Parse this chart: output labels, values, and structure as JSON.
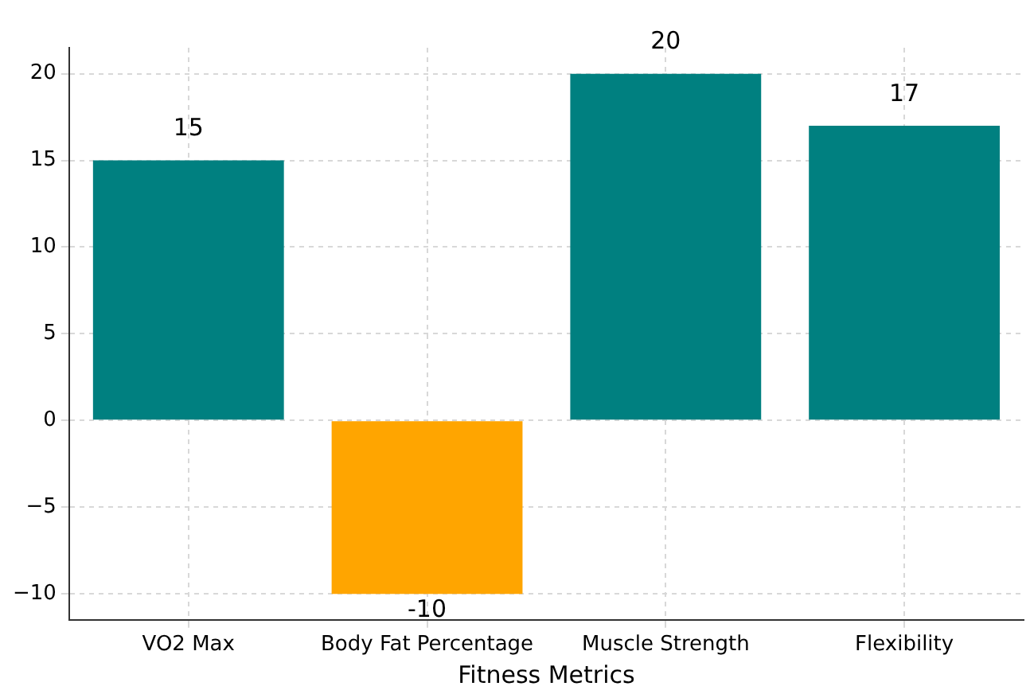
{
  "chart_data": {
    "type": "bar",
    "xlabel": "Fitness Metrics",
    "categories": [
      "VO2 Max",
      "Body Fat Percentage",
      "Muscle Strength",
      "Flexibility"
    ],
    "values": [
      15,
      -10,
      20,
      17
    ],
    "colors": [
      "#008080",
      "#ffa500",
      "#008080",
      "#008080"
    ],
    "ylim": [
      -11.5,
      21.5
    ],
    "yticks": [
      -10,
      -5,
      0,
      5,
      10,
      15,
      20
    ],
    "grid": true,
    "data_labels": true,
    "legend": false
  }
}
